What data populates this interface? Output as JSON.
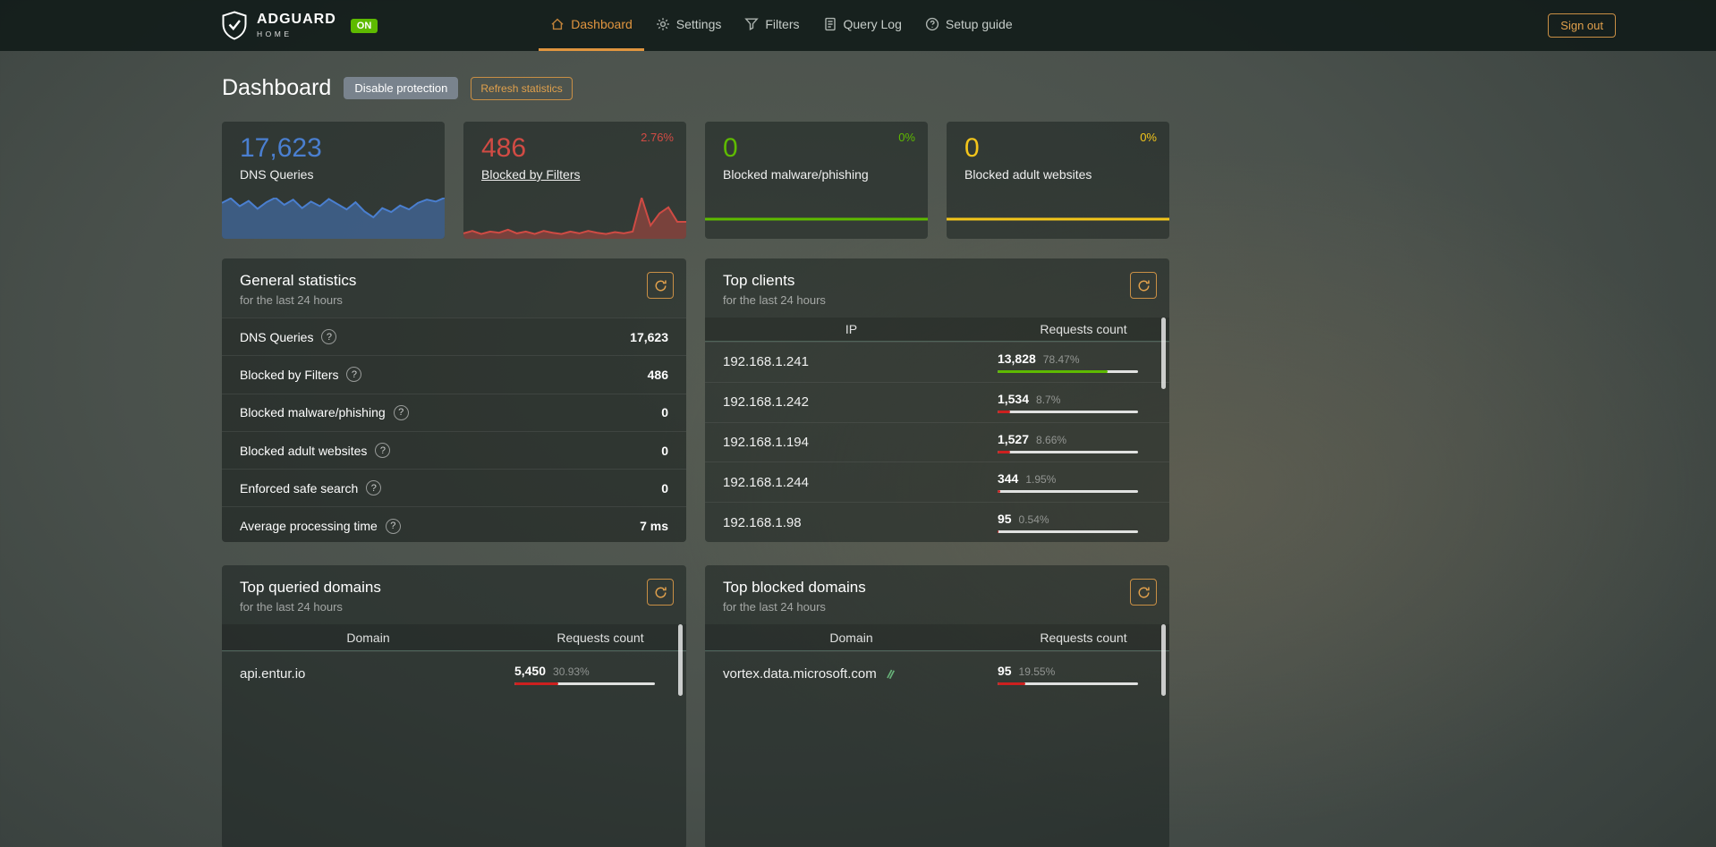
{
  "navbar": {
    "brand": "ADGUARD",
    "brand_sub": "HOME",
    "status_badge": "ON",
    "items": [
      {
        "label": "Dashboard",
        "icon": "home-icon",
        "active": true
      },
      {
        "label": "Settings",
        "icon": "gear-icon",
        "active": false
      },
      {
        "label": "Filters",
        "icon": "filter-icon",
        "active": false
      },
      {
        "label": "Query Log",
        "icon": "document-icon",
        "active": false
      },
      {
        "label": "Setup guide",
        "icon": "help-circle-icon",
        "active": false
      }
    ],
    "sign_out_label": "Sign out"
  },
  "page": {
    "title": "Dashboard",
    "disable_protection_label": "Disable protection",
    "refresh_statistics_label": "Refresh statistics"
  },
  "stat_cards": [
    {
      "value": "17,623",
      "label": "DNS Queries",
      "trend": "",
      "color": "#4a7fd0"
    },
    {
      "value": "486",
      "label": "Blocked by Filters",
      "trend": "2.76%",
      "color": "#d14b44"
    },
    {
      "value": "0",
      "label": "Blocked malware/phishing",
      "trend": "0%",
      "color": "#5eba00"
    },
    {
      "value": "0",
      "label": "Blocked adult websites",
      "trend": "0%",
      "color": "#f3c51b"
    }
  ],
  "general_statistics": {
    "title": "General statistics",
    "subtitle": "for the last 24 hours",
    "rows": [
      {
        "label": "DNS Queries",
        "value": "17,623"
      },
      {
        "label": "Blocked by Filters",
        "value": "486"
      },
      {
        "label": "Blocked malware/phishing",
        "value": "0"
      },
      {
        "label": "Blocked adult websites",
        "value": "0"
      },
      {
        "label": "Enforced safe search",
        "value": "0"
      },
      {
        "label": "Average processing time",
        "value": "7 ms"
      }
    ]
  },
  "top_clients": {
    "title": "Top clients",
    "subtitle": "for the last 24 hours",
    "columns": [
      "IP",
      "Requests count"
    ],
    "rows": [
      {
        "main": "192.168.1.241",
        "count": "13,828",
        "percent": "78.47%",
        "pct": 78.47,
        "bar_color": "#5eba00"
      },
      {
        "main": "192.168.1.242",
        "count": "1,534",
        "percent": "8.7%",
        "pct": 8.7,
        "bar_color": "#cd201f"
      },
      {
        "main": "192.168.1.194",
        "count": "1,527",
        "percent": "8.66%",
        "pct": 8.66,
        "bar_color": "#cd201f"
      },
      {
        "main": "192.168.1.244",
        "count": "344",
        "percent": "1.95%",
        "pct": 1.95,
        "bar_color": "#cd201f"
      },
      {
        "main": "192.168.1.98",
        "count": "95",
        "percent": "0.54%",
        "pct": 0.54,
        "bar_color": "#cd201f"
      }
    ]
  },
  "top_queried_domains": {
    "title": "Top queried domains",
    "subtitle": "for the last 24 hours",
    "columns": [
      "Domain",
      "Requests count"
    ],
    "rows": [
      {
        "main": "api.entur.io",
        "count": "5,450",
        "percent": "30.93%",
        "pct": 30.93,
        "bar_color": "#cd201f",
        "has_icon": false
      }
    ]
  },
  "top_blocked_domains": {
    "title": "Top blocked domains",
    "subtitle": "for the last 24 hours",
    "columns": [
      "Domain",
      "Requests count"
    ],
    "rows": [
      {
        "main": "vortex.data.microsoft.com",
        "count": "95",
        "percent": "19.55%",
        "pct": 19.55,
        "bar_color": "#cd201f",
        "has_icon": true
      }
    ]
  },
  "chart_data": [
    {
      "type": "area",
      "name": "dns-queries-sparkline",
      "label": "DNS Queries",
      "color": "#4a7fd0",
      "fill": "rgba(74,127,208,0.5)",
      "stroke_width": 2,
      "values": [
        55,
        62,
        50,
        58,
        46,
        56,
        63,
        52,
        60,
        47,
        57,
        50,
        61,
        53,
        45,
        56,
        42,
        33,
        47,
        41,
        51,
        45,
        55,
        60,
        57,
        63
      ]
    },
    {
      "type": "area",
      "name": "blocked-by-filters-sparkline",
      "label": "Blocked by Filters",
      "color": "#cf4b44",
      "fill": "rgba(207,75,68,0.45)",
      "stroke_width": 2,
      "values": [
        9,
        13,
        8,
        12,
        10,
        15,
        9,
        12,
        8,
        13,
        10,
        8,
        12,
        9,
        13,
        10,
        8,
        11,
        9,
        12,
        68,
        22,
        42,
        52,
        28,
        28
      ]
    },
    {
      "type": "line",
      "name": "blocked-malware-sparkline",
      "label": "Blocked malware/phishing",
      "color": "#5eba00",
      "stroke_width": 3,
      "values": [
        0,
        0,
        0,
        0,
        0,
        0,
        0,
        0,
        0,
        0,
        0,
        0
      ]
    },
    {
      "type": "line",
      "name": "blocked-adult-sparkline",
      "label": "Blocked adult websites",
      "color": "#f3c51b",
      "stroke_width": 3,
      "values": [
        0,
        0,
        0,
        0,
        0,
        0,
        0,
        0,
        0,
        0,
        0,
        0
      ]
    }
  ]
}
